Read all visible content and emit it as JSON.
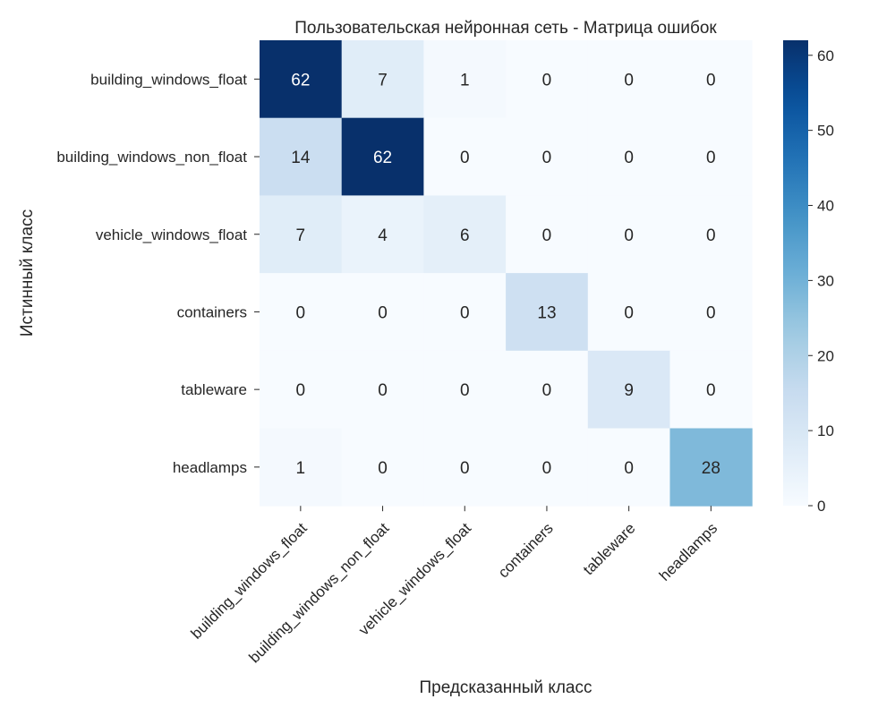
{
  "chart_data": {
    "type": "heatmap",
    "title": "Пользовательская нейронная сеть - Матрица ошибок",
    "xlabel": "Предсказанный класс",
    "ylabel": "Истинный класс",
    "x_categories": [
      "building_windows_float",
      "building_windows_non_float",
      "vehicle_windows_float",
      "containers",
      "tableware",
      "headlamps"
    ],
    "y_categories": [
      "building_windows_float",
      "building_windows_non_float",
      "vehicle_windows_float",
      "containers",
      "tableware",
      "headlamps"
    ],
    "values": [
      [
        62,
        7,
        1,
        0,
        0,
        0
      ],
      [
        14,
        62,
        0,
        0,
        0,
        0
      ],
      [
        7,
        4,
        6,
        0,
        0,
        0
      ],
      [
        0,
        0,
        0,
        13,
        0,
        0
      ],
      [
        0,
        0,
        0,
        0,
        9,
        0
      ],
      [
        1,
        0,
        0,
        0,
        0,
        28
      ]
    ],
    "colormap": "Blues",
    "vmin": 0,
    "vmax": 62,
    "colorbar_ticks": [
      0,
      10,
      20,
      30,
      40,
      50,
      60
    ],
    "grid": false
  }
}
